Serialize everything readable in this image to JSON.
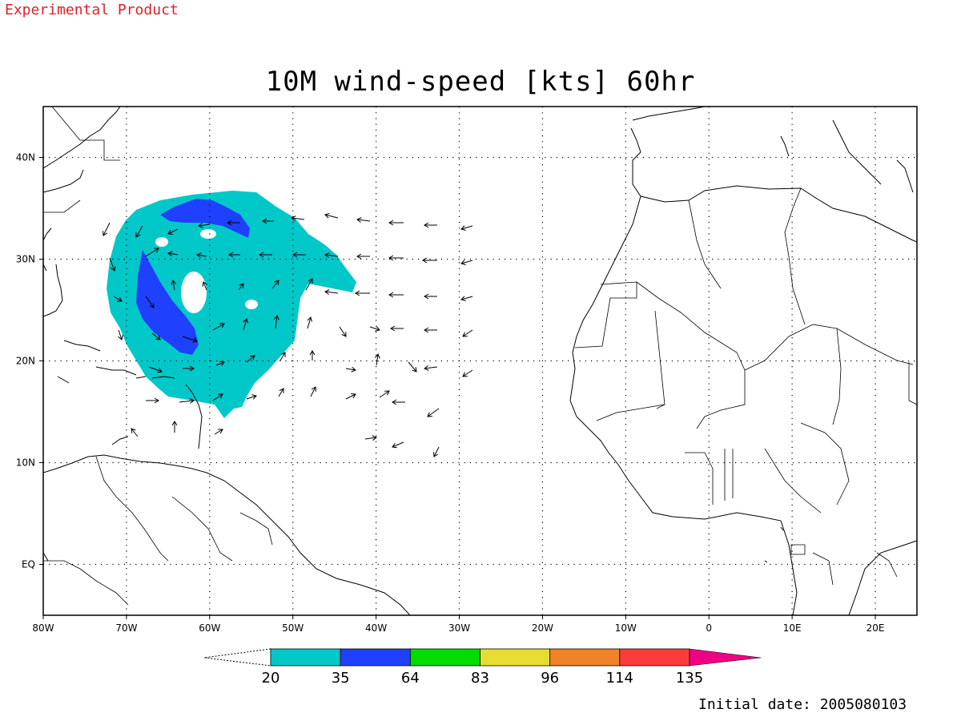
{
  "header": {
    "experimental_label": "Experimental Product",
    "title": "10M wind-speed [kts] 60hr"
  },
  "footer": {
    "initial_date": "Initial date: 2005080103"
  },
  "map": {
    "lon_range": [
      -80,
      25
    ],
    "lat_range": [
      -5,
      45
    ],
    "lon_ticks": [
      {
        "lon": -80,
        "label": "80W"
      },
      {
        "lon": -70,
        "label": "70W"
      },
      {
        "lon": -60,
        "label": "60W"
      },
      {
        "lon": -50,
        "label": "50W"
      },
      {
        "lon": -40,
        "label": "40W"
      },
      {
        "lon": -30,
        "label": "30W"
      },
      {
        "lon": -20,
        "label": "20W"
      },
      {
        "lon": -10,
        "label": "10W"
      },
      {
        "lon": 0,
        "label": "0"
      },
      {
        "lon": 10,
        "label": "10E"
      },
      {
        "lon": 20,
        "label": "20E"
      }
    ],
    "lat_ticks": [
      {
        "lat": 40,
        "label": "40N"
      },
      {
        "lat": 30,
        "label": "30N"
      },
      {
        "lat": 20,
        "label": "20N"
      },
      {
        "lat": 10,
        "label": "10N"
      },
      {
        "lat": 0,
        "label": "EQ"
      }
    ],
    "grid": true
  },
  "colorbar": {
    "levels": [
      "20",
      "35",
      "64",
      "83",
      "96",
      "114",
      "135"
    ],
    "colors": [
      "#00c8c8",
      "#2040ff",
      "#00dc00",
      "#e6dc32",
      "#f08228",
      "#fa3c3c",
      "#f00082"
    ]
  },
  "shading_colors": {
    "light": "#00c8c8",
    "strong": "#2040ff"
  }
}
